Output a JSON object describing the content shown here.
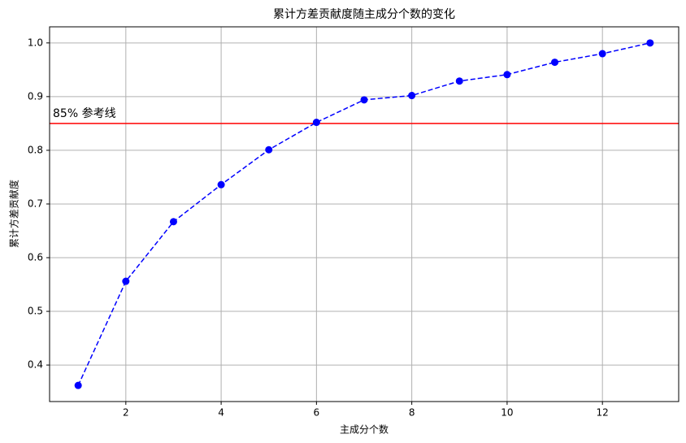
{
  "chart_data": {
    "type": "line",
    "title": "累计方差贡献度随主成分个数的变化",
    "x_label": "主成分个数",
    "y_label": "累计方差贡献度",
    "x": [
      1,
      2,
      3,
      4,
      5,
      6,
      7,
      8,
      9,
      10,
      11,
      12,
      13
    ],
    "series": [
      {
        "color": "#0000ff",
        "values": [
          0.362,
          0.556,
          0.667,
          0.736,
          0.801,
          0.852,
          0.894,
          0.902,
          0.929,
          0.941,
          0.964,
          0.98,
          1.0
        ]
      }
    ],
    "reference_line": {
      "value": 0.85,
      "label": "85% 参考线",
      "color": "#ff0000"
    },
    "xlim": [
      0.4,
      13.6
    ],
    "ylim": [
      0.332,
      1.03
    ],
    "xticks": [
      2,
      4,
      6,
      8,
      10,
      12
    ],
    "yticks": [
      0.4,
      0.5,
      0.6,
      0.7,
      0.8,
      0.9,
      {
        "value": 1,
        "label": "1.0"
      }
    ],
    "grid": true
  }
}
